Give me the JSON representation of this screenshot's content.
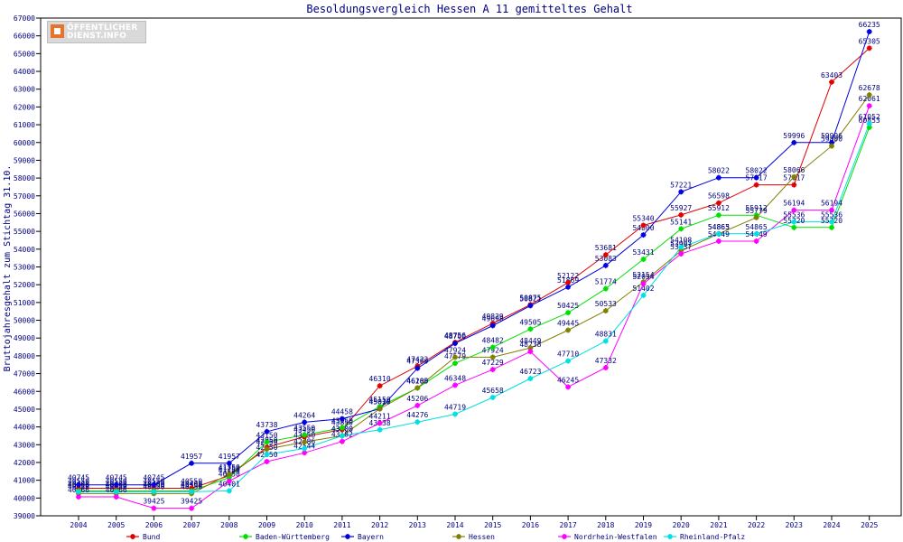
{
  "chart_data": {
    "type": "line",
    "title": "Besoldungsvergleich Hessen A 11 gemitteltes Gehalt",
    "ylabel": "Bruttojahresgehalt zum Stichtag 31.10.",
    "xlabel": "",
    "x": [
      "2004",
      "2005",
      "2006",
      "2007",
      "2008",
      "2009",
      "2010",
      "2011",
      "2012",
      "2013",
      "2014",
      "2015",
      "2016",
      "2017",
      "2018",
      "2019",
      "2020",
      "2021",
      "2022",
      "2023",
      "2024",
      "2025"
    ],
    "ylim": [
      39000,
      67000
    ],
    "yticks": [
      39000,
      40000,
      41000,
      42000,
      43000,
      44000,
      45000,
      46000,
      47000,
      48000,
      49000,
      50000,
      51000,
      52000,
      53000,
      54000,
      55000,
      56000,
      57000,
      58000,
      59000,
      60000,
      61000,
      62000,
      63000,
      64000,
      65000,
      66000,
      67000
    ],
    "grid": false,
    "legend_position": "bottom",
    "series": [
      {
        "name": "Bund",
        "color": "#e00000",
        "values": [
          40550,
          40550,
          40550,
          40550,
          41250,
          42850,
          43450,
          43850,
          46310,
          47422,
          48756,
          49829,
          50875,
          52122,
          53681,
          55340,
          55927,
          56598,
          57617,
          57617,
          63403,
          65305
        ]
      },
      {
        "name": "Baden-Württemberg",
        "color": "#00e000",
        "values": [
          40400,
          40400,
          40400,
          40400,
          41150,
          43150,
          43550,
          43950,
          45150,
          46185,
          47579,
          48482,
          49505,
          50425,
          51774,
          53431,
          55141,
          55912,
          55912,
          55220,
          55220,
          60853
        ]
      },
      {
        "name": "Bayern",
        "color": "#0000e0",
        "values": [
          40745,
          40745,
          40745,
          41957,
          41957,
          43738,
          44264,
          44458,
          45017,
          47300,
          48700,
          49698,
          50821,
          51869,
          53083,
          54800,
          57221,
          58022,
          58022,
          59996,
          59996,
          66235
        ]
      },
      {
        "name": "Hessen",
        "color": "#808000",
        "values": [
          40250,
          40250,
          40250,
          40250,
          41350,
          42750,
          43150,
          43500,
          45020,
          46200,
          47924,
          47924,
          48449,
          49445,
          50533,
          52154,
          53907,
          54863,
          55779,
          58066,
          59800,
          62678
        ]
      },
      {
        "name": "Nordrhein-Westfalen",
        "color": "#ff00ff",
        "values": [
          40066,
          40066,
          39425,
          39425,
          40950,
          42050,
          42544,
          43182,
          44211,
          45206,
          46348,
          47229,
          48238,
          46245,
          47332,
          52054,
          53737,
          54449,
          54449,
          56194,
          56194,
          62061
        ]
      },
      {
        "name": "Rheinland-Pfalz",
        "color": "#00e0e0",
        "values": [
          40350,
          40350,
          40350,
          40350,
          40401,
          42450,
          42786,
          43500,
          43838,
          44276,
          44719,
          45658,
          46723,
          47710,
          48831,
          51402,
          54108,
          54865,
          54865,
          55536,
          55536,
          61052
        ]
      }
    ]
  },
  "logo": {
    "line1": "ÖFFENTLICHER",
    "line2": "DIENST.INFO"
  }
}
